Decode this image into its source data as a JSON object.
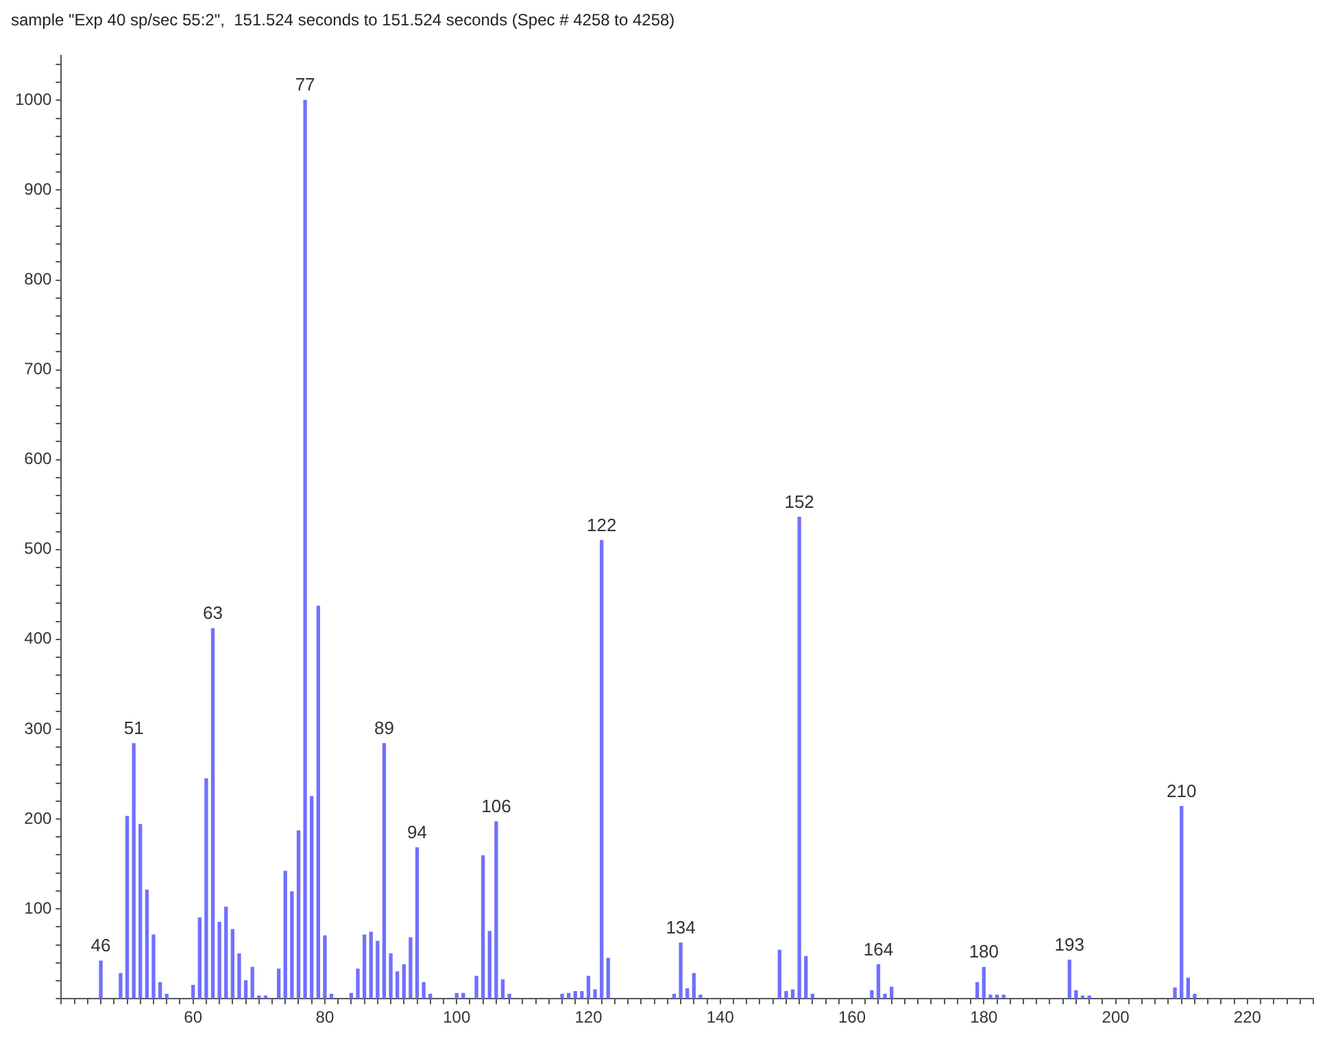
{
  "chart_data": {
    "type": "bar",
    "title": "sample \"Exp 40 sp/sec 55:2\",  151.524 seconds to 151.524 seconds (Spec # 4258 to 4258)",
    "x": [
      46,
      49,
      50,
      51,
      52,
      53,
      54,
      55,
      56,
      60,
      61,
      62,
      63,
      64,
      65,
      66,
      67,
      68,
      69,
      70,
      71,
      73,
      74,
      75,
      76,
      77,
      78,
      79,
      80,
      81,
      84,
      85,
      86,
      87,
      88,
      89,
      90,
      91,
      92,
      93,
      94,
      95,
      96,
      100,
      101,
      103,
      104,
      105,
      106,
      107,
      108,
      116,
      117,
      118,
      119,
      120,
      121,
      122,
      123,
      133,
      134,
      135,
      136,
      137,
      149,
      150,
      151,
      152,
      153,
      154,
      163,
      164,
      165,
      166,
      179,
      180,
      181,
      182,
      183,
      193,
      194,
      195,
      196,
      209,
      210,
      211,
      212
    ],
    "values": [
      42,
      28,
      203,
      284,
      194,
      121,
      71,
      18,
      5,
      15,
      90,
      245,
      412,
      85,
      102,
      77,
      50,
      20,
      35,
      3,
      3,
      33,
      142,
      119,
      187,
      1000,
      225,
      437,
      70,
      5,
      6,
      33,
      71,
      74,
      64,
      284,
      50,
      30,
      38,
      68,
      168,
      18,
      5,
      6,
      6,
      25,
      159,
      75,
      197,
      21,
      5,
      5,
      6,
      8,
      8,
      25,
      10,
      510,
      45,
      5,
      62,
      11,
      28,
      4,
      54,
      8,
      10,
      536,
      47,
      5,
      9,
      38,
      5,
      13,
      18,
      35,
      4,
      4,
      4,
      43,
      9,
      3,
      3,
      12,
      214,
      23,
      5
    ],
    "color": "#7070ff",
    "xlim": [
      40,
      230
    ],
    "xticks": [
      {
        "value": 40,
        "label": null
      },
      {
        "value": 42,
        "label": null
      },
      {
        "value": 44,
        "label": null
      },
      {
        "value": 46,
        "label": null
      },
      {
        "value": 48,
        "label": null
      },
      {
        "value": 50,
        "label": null
      },
      {
        "value": 52,
        "label": null
      },
      {
        "value": 54,
        "label": null
      },
      {
        "value": 56,
        "label": null
      },
      {
        "value": 58,
        "label": null
      },
      60,
      {
        "value": 62,
        "label": null
      },
      {
        "value": 64,
        "label": null
      },
      {
        "value": 66,
        "label": null
      },
      {
        "value": 68,
        "label": null
      },
      {
        "value": 70,
        "label": null
      },
      {
        "value": 72,
        "label": null
      },
      {
        "value": 74,
        "label": null
      },
      {
        "value": 76,
        "label": null
      },
      {
        "value": 78,
        "label": null
      },
      80,
      {
        "value": 82,
        "label": null
      },
      {
        "value": 84,
        "label": null
      },
      {
        "value": 86,
        "label": null
      },
      {
        "value": 88,
        "label": null
      },
      {
        "value": 90,
        "label": null
      },
      {
        "value": 92,
        "label": null
      },
      {
        "value": 94,
        "label": null
      },
      {
        "value": 96,
        "label": null
      },
      {
        "value": 98,
        "label": null
      },
      100,
      {
        "value": 102,
        "label": null
      },
      {
        "value": 104,
        "label": null
      },
      {
        "value": 106,
        "label": null
      },
      {
        "value": 108,
        "label": null
      },
      {
        "value": 110,
        "label": null
      },
      {
        "value": 112,
        "label": null
      },
      {
        "value": 114,
        "label": null
      },
      {
        "value": 116,
        "label": null
      },
      {
        "value": 118,
        "label": null
      },
      120,
      {
        "value": 122,
        "label": null
      },
      {
        "value": 124,
        "label": null
      },
      {
        "value": 126,
        "label": null
      },
      {
        "value": 128,
        "label": null
      },
      {
        "value": 130,
        "label": null
      },
      {
        "value": 132,
        "label": null
      },
      {
        "value": 134,
        "label": null
      },
      {
        "value": 136,
        "label": null
      },
      {
        "value": 138,
        "label": null
      },
      140,
      {
        "value": 142,
        "label": null
      },
      {
        "value": 144,
        "label": null
      },
      {
        "value": 146,
        "label": null
      },
      {
        "value": 148,
        "label": null
      },
      {
        "value": 150,
        "label": null
      },
      {
        "value": 152,
        "label": null
      },
      {
        "value": 154,
        "label": null
      },
      {
        "value": 156,
        "label": null
      },
      {
        "value": 158,
        "label": null
      },
      160,
      {
        "value": 162,
        "label": null
      },
      {
        "value": 164,
        "label": null
      },
      {
        "value": 166,
        "label": null
      },
      {
        "value": 168,
        "label": null
      },
      {
        "value": 170,
        "label": null
      },
      {
        "value": 172,
        "label": null
      },
      {
        "value": 174,
        "label": null
      },
      {
        "value": 176,
        "label": null
      },
      {
        "value": 178,
        "label": null
      },
      180,
      {
        "value": 182,
        "label": null
      },
      {
        "value": 184,
        "label": null
      },
      {
        "value": 186,
        "label": null
      },
      {
        "value": 188,
        "label": null
      },
      {
        "value": 190,
        "label": null
      },
      {
        "value": 192,
        "label": null
      },
      {
        "value": 194,
        "label": null
      },
      {
        "value": 196,
        "label": null
      },
      {
        "value": 198,
        "label": null
      },
      200,
      {
        "value": 202,
        "label": null
      },
      {
        "value": 204,
        "label": null
      },
      {
        "value": 206,
        "label": null
      },
      {
        "value": 208,
        "label": null
      },
      {
        "value": 210,
        "label": null
      },
      {
        "value": 212,
        "label": null
      },
      {
        "value": 214,
        "label": null
      },
      {
        "value": 216,
        "label": null
      },
      {
        "value": 218,
        "label": null
      },
      220,
      {
        "value": 222,
        "label": null
      },
      {
        "value": 224,
        "label": null
      },
      {
        "value": 226,
        "label": null
      },
      {
        "value": 228,
        "label": null
      },
      {
        "value": 230,
        "label": null
      }
    ],
    "ylim": [
      0,
      1050
    ],
    "yticks": [
      {
        "value": 0,
        "label": null
      },
      {
        "value": 20,
        "label": null
      },
      {
        "value": 40,
        "label": null
      },
      {
        "value": 60,
        "label": null
      },
      {
        "value": 80,
        "label": null
      },
      100,
      {
        "value": 120,
        "label": null
      },
      {
        "value": 140,
        "label": null
      },
      {
        "value": 160,
        "label": null
      },
      {
        "value": 180,
        "label": null
      },
      200,
      {
        "value": 220,
        "label": null
      },
      {
        "value": 240,
        "label": null
      },
      {
        "value": 260,
        "label": null
      },
      {
        "value": 280,
        "label": null
      },
      300,
      {
        "value": 320,
        "label": null
      },
      {
        "value": 340,
        "label": null
      },
      {
        "value": 360,
        "label": null
      },
      {
        "value": 380,
        "label": null
      },
      400,
      {
        "value": 420,
        "label": null
      },
      {
        "value": 440,
        "label": null
      },
      {
        "value": 460,
        "label": null
      },
      {
        "value": 480,
        "label": null
      },
      500,
      {
        "value": 520,
        "label": null
      },
      {
        "value": 540,
        "label": null
      },
      {
        "value": 560,
        "label": null
      },
      {
        "value": 580,
        "label": null
      },
      600,
      {
        "value": 620,
        "label": null
      },
      {
        "value": 640,
        "label": null
      },
      {
        "value": 660,
        "label": null
      },
      {
        "value": 680,
        "label": null
      },
      700,
      {
        "value": 720,
        "label": null
      },
      {
        "value": 740,
        "label": null
      },
      {
        "value": 760,
        "label": null
      },
      {
        "value": 780,
        "label": null
      },
      800,
      {
        "value": 820,
        "label": null
      },
      {
        "value": 840,
        "label": null
      },
      {
        "value": 860,
        "label": null
      },
      {
        "value": 880,
        "label": null
      },
      900,
      {
        "value": 920,
        "label": null
      },
      {
        "value": 940,
        "label": null
      },
      {
        "value": 960,
        "label": null
      },
      {
        "value": 980,
        "label": null
      },
      1000,
      {
        "value": 1020,
        "label": null
      },
      {
        "value": 1040,
        "label": null
      }
    ],
    "annotations": [
      {
        "text": "46",
        "x": 46,
        "y": 42
      },
      {
        "text": "51",
        "x": 51,
        "y": 284
      },
      {
        "text": "63",
        "x": 63,
        "y": 412
      },
      {
        "text": "77",
        "x": 77,
        "y": 1000
      },
      {
        "text": "89",
        "x": 89,
        "y": 284
      },
      {
        "text": "94",
        "x": 94,
        "y": 168
      },
      {
        "text": "106",
        "x": 106,
        "y": 197
      },
      {
        "text": "122",
        "x": 122,
        "y": 510
      },
      {
        "text": "134",
        "x": 134,
        "y": 62
      },
      {
        "text": "152",
        "x": 152,
        "y": 536
      },
      {
        "text": "164",
        "x": 164,
        "y": 38
      },
      {
        "text": "180",
        "x": 180,
        "y": 35
      },
      {
        "text": "193",
        "x": 193,
        "y": 43
      },
      {
        "text": "210",
        "x": 210,
        "y": 214
      }
    ]
  }
}
